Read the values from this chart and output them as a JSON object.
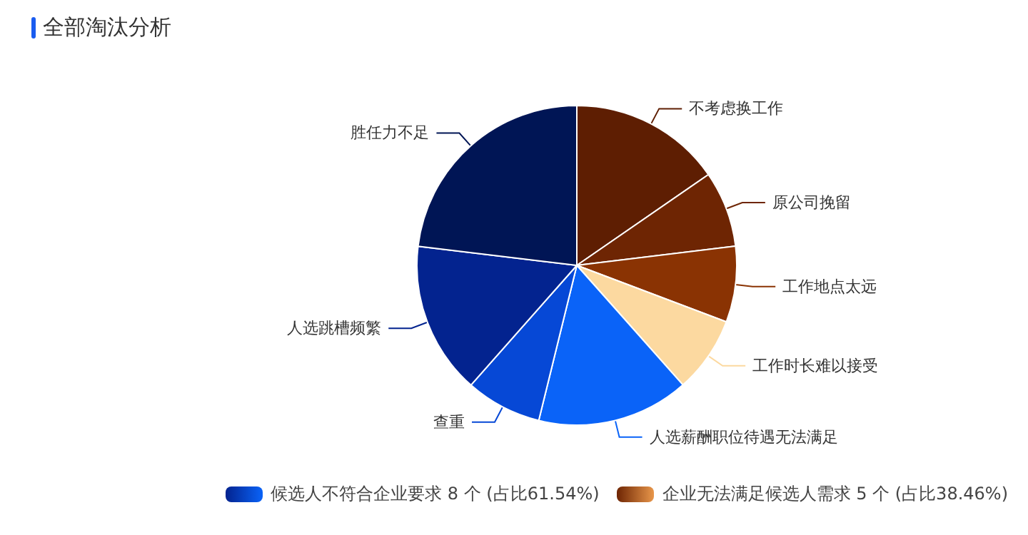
{
  "chart_data": {
    "type": "pie",
    "title": "全部淘汰分析",
    "categories": [
      "不考虑换工作",
      "原公司挽留",
      "工作地点太远",
      "工作时长难以接受",
      "人选薪酬职位待遇无法满足",
      "查重",
      "人选跳槽频繁",
      "胜任力不足"
    ],
    "values": [
      15.38,
      7.69,
      7.69,
      7.69,
      15.38,
      7.69,
      15.38,
      23.1
    ],
    "colors": [
      "#5e1e02",
      "#6e2503",
      "#8a3303",
      "#fcd9a0",
      "#0a63f8",
      "#0648d6",
      "#03238f",
      "#001555"
    ],
    "annotations": [
      "候选人不符合企业要求 8 个 (占比61.54%)",
      "企业无法满足候选人需求 5 个 (占比38.46%)"
    ]
  }
}
